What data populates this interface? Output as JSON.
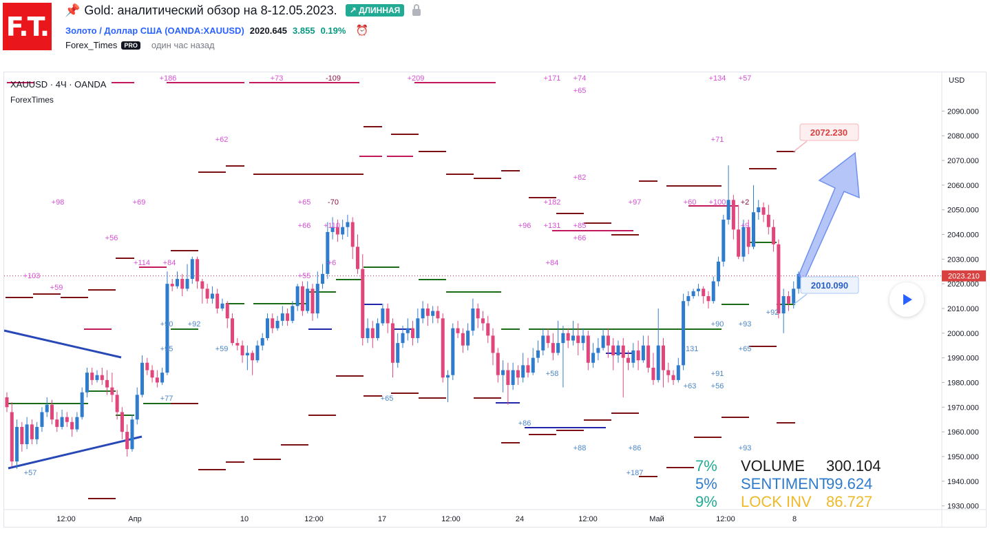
{
  "header": {
    "logo_text": "F.T.",
    "title": "Gold: аналитический обзор на 8-12.05.2023.",
    "badge": "↗ ДЛИННАЯ",
    "symbol_link": "Золото / Доллар США (OANDA:XAUUSD)",
    "price": "2020.645",
    "change": "3.855",
    "change_pct": "0.19%",
    "author": "Forex_Times",
    "pro_badge": "PRO",
    "published": "один час назад"
  },
  "chart_header": {
    "symbol_info": "XAUUSD · 4Ч · OANDA",
    "indicator": "ForexTimes",
    "currency": "USD"
  },
  "legend": [
    {
      "pct": "7%",
      "label": "VOLUME",
      "value": "300.104",
      "color": "#1a1a1a",
      "pct_color": "#22ab94"
    },
    {
      "pct": "5%",
      "label": "SENTIMENT",
      "value": "99.624",
      "color": "#2f7bcc",
      "pct_color": "#2f7bcc"
    },
    {
      "pct": "9%",
      "label": "LOCK INV",
      "value": "86.727",
      "color": "#f0b92a",
      "pct_color": "#22ab94"
    }
  ],
  "chart_data": {
    "type": "candlestick",
    "y_axis": {
      "range": [
        1925,
        2106
      ],
      "ticks": [
        "2090.000",
        "2080.000",
        "2070.000",
        "2060.000",
        "2050.000",
        "2040.000",
        "2030.000",
        "2020.000",
        "2010.000",
        "2000.000",
        "1990.000",
        "1980.000",
        "1970.000",
        "1960.000",
        "1950.000",
        "1940.000",
        "1930.000"
      ]
    },
    "x_axis": {
      "labels": [
        "12:00",
        "Апр",
        "10",
        "12:00",
        "17",
        "12:00",
        "24",
        "12:00",
        "Май",
        "12:00",
        "8"
      ]
    },
    "current_price": "2023.210",
    "target_label": "2072.230",
    "entry_label": "2010.090",
    "candles": [
      [
        1974,
        1970,
        1976,
        1968
      ],
      [
        1968,
        1948,
        1972,
        1946
      ],
      [
        1948,
        1962,
        1965,
        1945
      ],
      [
        1962,
        1955,
        1964,
        1952
      ],
      [
        1955,
        1963,
        1966,
        1953
      ],
      [
        1963,
        1957,
        1965,
        1955
      ],
      [
        1957,
        1962,
        1964,
        1955
      ],
      [
        1962,
        1968,
        1970,
        1960
      ],
      [
        1968,
        1971,
        1974,
        1966
      ],
      [
        1971,
        1965,
        1973,
        1963
      ],
      [
        1965,
        1962,
        1968,
        1960
      ],
      [
        1962,
        1966,
        1969,
        1961
      ],
      [
        1966,
        1964,
        1968,
        1962
      ],
      [
        1964,
        1961,
        1966,
        1958
      ],
      [
        1961,
        1966,
        1968,
        1960
      ],
      [
        1966,
        1976,
        1978,
        1965
      ],
      [
        1976,
        1984,
        1986,
        1974
      ],
      [
        1984,
        1981,
        1986,
        1979
      ],
      [
        1981,
        1983,
        1985,
        1980
      ],
      [
        1983,
        1981,
        1986,
        1979
      ],
      [
        1981,
        1978,
        1985,
        1975
      ],
      [
        1978,
        1975,
        1984,
        1972
      ],
      [
        1975,
        1968,
        1977,
        1965
      ],
      [
        1968,
        1960,
        1970,
        1957
      ],
      [
        1960,
        1953,
        1963,
        1950
      ],
      [
        1953,
        1965,
        1967,
        1952
      ],
      [
        1965,
        1975,
        1978,
        1963
      ],
      [
        1975,
        1988,
        1991,
        1974
      ],
      [
        1988,
        1985,
        1990,
        1983
      ],
      [
        1985,
        1982,
        1987,
        1980
      ],
      [
        1982,
        1980,
        1985,
        1978
      ],
      [
        1980,
        1984,
        1986,
        1979
      ],
      [
        1984,
        2020,
        2025,
        1983
      ],
      [
        2020,
        2019,
        2022,
        2017
      ],
      [
        2019,
        2022,
        2025,
        2018
      ],
      [
        2022,
        2018,
        2024,
        2015
      ],
      [
        2018,
        2022,
        2028,
        2017
      ],
      [
        2022,
        2030,
        2031,
        2020
      ],
      [
        2030,
        2021,
        2031,
        2018
      ],
      [
        2021,
        2018,
        2022,
        2012
      ],
      [
        2018,
        2014,
        2020,
        2012
      ],
      [
        2014,
        2016,
        2019,
        2012
      ],
      [
        2016,
        2010,
        2018,
        2008
      ],
      [
        2010,
        2012,
        2014,
        2009
      ],
      [
        2012,
        2006,
        2013,
        2002
      ],
      [
        2006,
        1996,
        2008,
        1995
      ],
      [
        1996,
        1995,
        1998,
        1993
      ],
      [
        1995,
        1991,
        1997,
        1988
      ],
      [
        1991,
        1992,
        1995,
        1985
      ],
      [
        1992,
        1989,
        1993,
        1983
      ],
      [
        1989,
        1995,
        1997,
        1988
      ],
      [
        1995,
        1998,
        2000,
        1993
      ],
      [
        1998,
        2006,
        2008,
        1997
      ],
      [
        2006,
        2002,
        2008,
        2000
      ],
      [
        2002,
        2005,
        2007,
        2001
      ],
      [
        2005,
        2008,
        2011,
        2003
      ],
      [
        2008,
        2005,
        2010,
        2003
      ],
      [
        2005,
        2011,
        2013,
        2004
      ],
      [
        2011,
        2019,
        2020,
        2009
      ],
      [
        2019,
        2009,
        2021,
        2007
      ],
      [
        2009,
        2018,
        2021,
        2008
      ],
      [
        2018,
        2008,
        2020,
        2005
      ],
      [
        2008,
        2020,
        2025,
        2006
      ],
      [
        2020,
        2024,
        2028,
        2018
      ],
      [
        2024,
        2041,
        2045,
        2022
      ],
      [
        2041,
        2043,
        2047,
        2038
      ],
      [
        2043,
        2040,
        2046,
        2037
      ],
      [
        2040,
        2043,
        2046,
        2038
      ],
      [
        2043,
        2045,
        2048,
        2039
      ],
      [
        2045,
        2035,
        2047,
        2030
      ],
      [
        2035,
        2026,
        2040,
        2024
      ],
      [
        2026,
        1998,
        2032,
        1995
      ],
      [
        1998,
        2002,
        2006,
        1996
      ],
      [
        2002,
        1998,
        2005,
        1994
      ],
      [
        1998,
        2004,
        2006,
        1997
      ],
      [
        2004,
        2010,
        2012,
        2003
      ],
      [
        2010,
        2004,
        2012,
        2000
      ],
      [
        2004,
        1988,
        2006,
        1982
      ],
      [
        1988,
        1996,
        2000,
        1986
      ],
      [
        1996,
        2000,
        2003,
        1994
      ],
      [
        2000,
        2002,
        2006,
        1997
      ],
      [
        2002,
        1998,
        2005,
        1995
      ],
      [
        1998,
        2006,
        2010,
        1996
      ],
      [
        2006,
        2010,
        2013,
        2004
      ],
      [
        2010,
        2007,
        2012,
        2003
      ],
      [
        2007,
        2009,
        2011,
        2004
      ],
      [
        2009,
        2006,
        2011,
        2004
      ],
      [
        2006,
        1982,
        2008,
        1980
      ],
      [
        1982,
        1983,
        1985,
        1972
      ],
      [
        1983,
        2002,
        2004,
        1981
      ],
      [
        2002,
        2000,
        2005,
        1998
      ],
      [
        2000,
        1995,
        2002,
        1992
      ],
      [
        1995,
        2001,
        2004,
        1993
      ],
      [
        2001,
        2010,
        2014,
        1999
      ],
      [
        2010,
        2006,
        2012,
        2002
      ],
      [
        2006,
        2004,
        2009,
        2001
      ],
      [
        2004,
        1999,
        2007,
        1996
      ],
      [
        1999,
        1992,
        2002,
        1987
      ],
      [
        1992,
        1983,
        1994,
        1980
      ],
      [
        1983,
        1985,
        1989,
        1976
      ],
      [
        1985,
        1979,
        1988,
        1971
      ],
      [
        1979,
        1985,
        1988,
        1977
      ],
      [
        1985,
        1982,
        1987,
        1979
      ],
      [
        1982,
        1987,
        1992,
        1980
      ],
      [
        1987,
        1984,
        1990,
        1982
      ],
      [
        1984,
        1990,
        1994,
        1983
      ],
      [
        1990,
        1993,
        1997,
        1988
      ],
      [
        1993,
        1999,
        2002,
        1991
      ],
      [
        1999,
        1996,
        2002,
        1994
      ],
      [
        1996,
        1992,
        2000,
        1989
      ],
      [
        1992,
        1996,
        2005,
        1991
      ],
      [
        1996,
        2000,
        2003,
        1978
      ],
      [
        2000,
        1997,
        2002,
        1994
      ],
      [
        1997,
        1999,
        2005,
        1995
      ],
      [
        1999,
        1996,
        2004,
        1991
      ],
      [
        1996,
        1999,
        2002,
        1993
      ],
      [
        1999,
        1988,
        2001,
        1985
      ],
      [
        1988,
        1992,
        1996,
        1986
      ],
      [
        1992,
        1994,
        1998,
        1989
      ],
      [
        1994,
        1999,
        2002,
        1993
      ],
      [
        1999,
        1995,
        2002,
        1990
      ],
      [
        1995,
        1991,
        1998,
        1985
      ],
      [
        1991,
        1995,
        1997,
        1988
      ],
      [
        1995,
        1990,
        1998,
        1974
      ],
      [
        1990,
        1988,
        1993,
        1985
      ],
      [
        1988,
        1993,
        1996,
        1986
      ],
      [
        1993,
        1989,
        1997,
        1985
      ],
      [
        1989,
        1995,
        1999,
        1988
      ],
      [
        1995,
        1986,
        1999,
        1984
      ],
      [
        1986,
        1981,
        1992,
        1979
      ],
      [
        1981,
        1995,
        2010,
        1980
      ],
      [
        1995,
        1985,
        1998,
        1978
      ],
      [
        1985,
        1983,
        1988,
        1980
      ],
      [
        1983,
        1981,
        1985,
        1979
      ],
      [
        1981,
        1987,
        1990,
        1980
      ],
      [
        1987,
        2013,
        2016,
        1985
      ],
      [
        2013,
        2015,
        2017,
        2011
      ],
      [
        2015,
        2017,
        2018,
        2014
      ],
      [
        2017,
        2018,
        2020,
        2015
      ],
      [
        2018,
        2015,
        2019,
        2012
      ],
      [
        2015,
        2013,
        2017,
        2010
      ],
      [
        2013,
        2021,
        2023,
        2012
      ],
      [
        2021,
        2029,
        2031,
        2019
      ],
      [
        2029,
        2046,
        2048,
        2027
      ],
      [
        2046,
        2054,
        2068,
        2044
      ],
      [
        2054,
        2042,
        2056,
        2038
      ],
      [
        2042,
        2031,
        2052,
        2030
      ],
      [
        2031,
        2043,
        2046,
        2029
      ],
      [
        2043,
        2035,
        2046,
        2032
      ],
      [
        2035,
        2049,
        2060,
        2034
      ],
      [
        2049,
        2051,
        2054,
        2046
      ],
      [
        2051,
        2048,
        2053,
        2045
      ],
      [
        2048,
        2043,
        2052,
        2040
      ],
      [
        2043,
        2036,
        2046,
        2033
      ],
      [
        2036,
        2008,
        2038,
        2006
      ],
      [
        2008,
        2015,
        2018,
        2000
      ],
      [
        2015,
        2012,
        2017,
        2009
      ],
      [
        2012,
        2018,
        2021,
        2010
      ],
      [
        2018,
        2024,
        2025,
        2016
      ]
    ]
  }
}
